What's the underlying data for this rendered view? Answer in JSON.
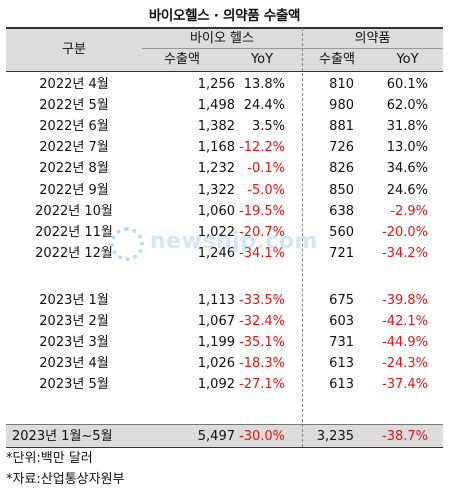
{
  "title": "바이오헬스 · 의약품 수출액",
  "header": {
    "category": "구분",
    "group1": "바이오 헬스",
    "group2": "의약품",
    "sub1": "수출액",
    "sub2": "YoY",
    "sub3": "수출액",
    "sub4": "YoY"
  },
  "rows_2022": [
    {
      "label": "2022년 4월",
      "bio": "1,256",
      "bio_yoy": "13.8%",
      "pharma": "810",
      "pharma_yoy": "60.1%"
    },
    {
      "label": "2022년 5월",
      "bio": "1,498",
      "bio_yoy": "24.4%",
      "pharma": "980",
      "pharma_yoy": "62.0%"
    },
    {
      "label": "2022년 6월",
      "bio": "1,382",
      "bio_yoy": "3.5%",
      "pharma": "881",
      "pharma_yoy": "31.8%"
    },
    {
      "label": "2022년 7월",
      "bio": "1,168",
      "bio_yoy": "-12.2%",
      "pharma": "726",
      "pharma_yoy": "13.0%"
    },
    {
      "label": "2022년 8월",
      "bio": "1,232",
      "bio_yoy": "-0.1%",
      "pharma": "826",
      "pharma_yoy": "34.6%"
    },
    {
      "label": "2022년 9월",
      "bio": "1,322",
      "bio_yoy": "-5.0%",
      "pharma": "850",
      "pharma_yoy": "24.6%"
    },
    {
      "label": "2022년 10월",
      "bio": "1,060",
      "bio_yoy": "-19.5%",
      "pharma": "638",
      "pharma_yoy": "-2.9%"
    },
    {
      "label": "2022년 11월",
      "bio": "1,022",
      "bio_yoy": "-20.7%",
      "pharma": "560",
      "pharma_yoy": "-20.0%"
    },
    {
      "label": "2022년 12월",
      "bio": "1,246",
      "bio_yoy": "-34.1%",
      "pharma": "721",
      "pharma_yoy": "-34.2%"
    }
  ],
  "rows_2023": [
    {
      "label": "2023년 1월",
      "bio": "1,113",
      "bio_yoy": "-33.5%",
      "pharma": "675",
      "pharma_yoy": "-39.8%"
    },
    {
      "label": "2023년 2월",
      "bio": "1,067",
      "bio_yoy": "-32.4%",
      "pharma": "603",
      "pharma_yoy": "-42.1%"
    },
    {
      "label": "2023년 3월",
      "bio": "1,199",
      "bio_yoy": "-35.1%",
      "pharma": "731",
      "pharma_yoy": "-44.9%"
    },
    {
      "label": "2023년 4월",
      "bio": "1,026",
      "bio_yoy": "-18.3%",
      "pharma": "613",
      "pharma_yoy": "-24.3%"
    },
    {
      "label": "2023년 5월",
      "bio": "1,092",
      "bio_yoy": "-27.1%",
      "pharma": "613",
      "pharma_yoy": "-37.4%"
    }
  ],
  "total": {
    "label": "2023년  1월~5월",
    "bio": "5,497",
    "bio_yoy": "-30.0%",
    "pharma": "3,235",
    "pharma_yoy": "-38.7%"
  },
  "notes": {
    "unit": "*단위:백만 달러",
    "source": "*자료:산업통상자원부"
  },
  "watermark": "newsnjp.com",
  "colors": {
    "negative": "#e01818",
    "header_bg": "#dcdcdc",
    "watermark": "#7cc2ec"
  }
}
